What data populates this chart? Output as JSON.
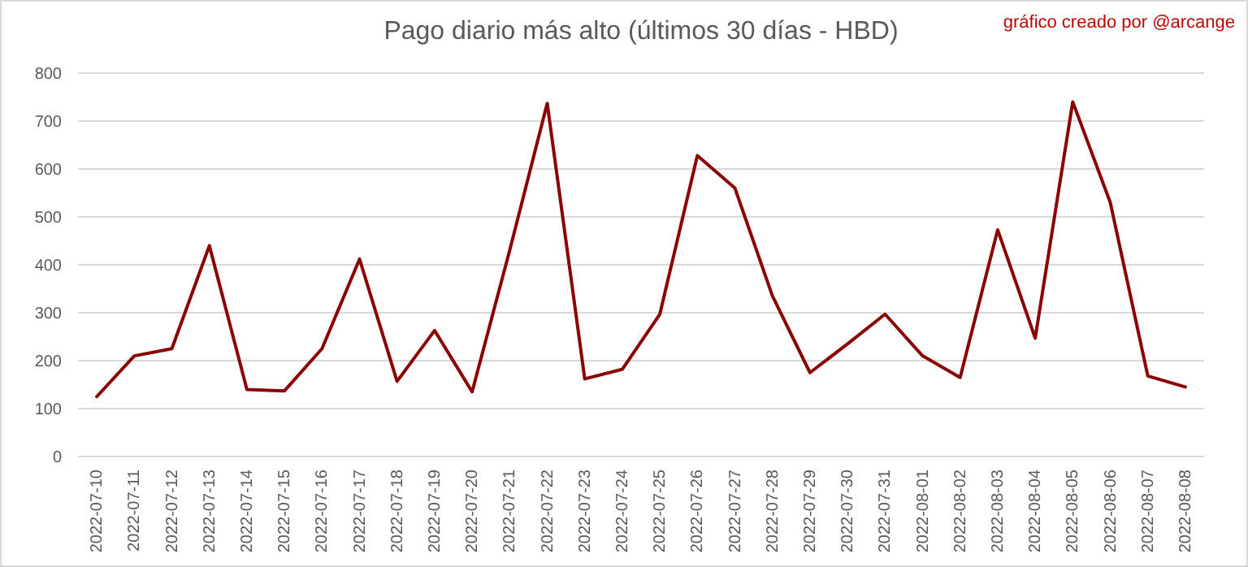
{
  "chart_data": {
    "type": "line",
    "title": "Pago diario más alto (últimos 30 días - HBD)",
    "annotations": [
      "gráfico creado por @arcange"
    ],
    "categories": [
      "2022-07-10",
      "2022-07-11",
      "2022-07-12",
      "2022-07-13",
      "2022-07-14",
      "2022-07-15",
      "2022-07-16",
      "2022-07-17",
      "2022-07-18",
      "2022-07-19",
      "2022-07-20",
      "2022-07-21",
      "2022-07-22",
      "2022-07-23",
      "2022-07-24",
      "2022-07-25",
      "2022-07-26",
      "2022-07-27",
      "2022-07-28",
      "2022-07-29",
      "2022-07-30",
      "2022-07-31",
      "2022-08-01",
      "2022-08-02",
      "2022-08-03",
      "2022-08-04",
      "2022-08-05",
      "2022-08-06",
      "2022-08-07",
      "2022-08-08"
    ],
    "series": [
      {
        "color": "#8b0000",
        "values": [
          125,
          210,
          225,
          440,
          140,
          137,
          225,
          412,
          157,
          263,
          135,
          430,
          737,
          162,
          182,
          297,
          628,
          560,
          335,
          175,
          235,
          297,
          210,
          165,
          473,
          247,
          740,
          530,
          168,
          145
        ]
      }
    ],
    "ylim": [
      0,
      800
    ],
    "yticks": [
      0,
      100,
      200,
      300,
      400,
      500,
      600,
      700,
      800
    ],
    "grid": "y",
    "marker": "none",
    "line_style": "solid"
  }
}
